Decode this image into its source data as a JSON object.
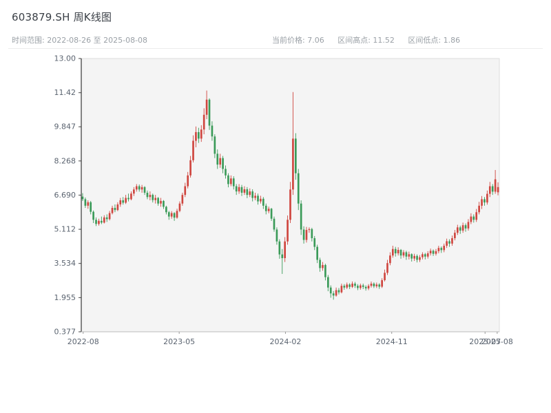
{
  "header": {
    "title": "603879.SH 周K线图",
    "range_label": "时间范围: 2022-08-26 至 2025-08-08",
    "stats": [
      "当前价格: 7.06",
      "区间高点: 11.52",
      "区间低点: 1.86"
    ]
  },
  "chart_data": {
    "type": "candlestick",
    "title": "603879.SH 周K线图",
    "symbol": "603879.SH",
    "interval": "weekly",
    "start": "2022-08-26",
    "end": "2025-08-08",
    "current_price": 7.06,
    "range_high": 11.52,
    "range_low": 1.86,
    "ylim": [
      0.377,
      13.0
    ],
    "grid": false,
    "up_color": "#cf453e",
    "down_color": "#3a9a58",
    "plot_bg": "#f4f4f4",
    "y_ticks": [
      "13.00",
      "11.42",
      "9.847",
      "8.268",
      "6.690",
      "5.112",
      "3.534",
      "1.955",
      "0.377"
    ],
    "x_ticks": [
      {
        "label": "2022-08",
        "week": 0.2
      },
      {
        "label": "2023-05",
        "week": 35.8
      },
      {
        "label": "2024-02",
        "week": 75.2
      },
      {
        "label": "2024-11",
        "week": 114.6
      },
      {
        "label": "2025-07",
        "week": 149.2
      },
      {
        "label": "2025-08",
        "week": 153.7
      }
    ],
    "candles_format": [
      "open",
      "high",
      "low",
      "close"
    ],
    "candles": [
      [
        6.62,
        6.78,
        6.42,
        6.5
      ],
      [
        6.5,
        6.58,
        6.1,
        6.2
      ],
      [
        6.2,
        6.45,
        6.06,
        6.36
      ],
      [
        6.36,
        6.42,
        5.8,
        5.92
      ],
      [
        5.92,
        5.98,
        5.4,
        5.55
      ],
      [
        5.55,
        5.66,
        5.26,
        5.36
      ],
      [
        5.36,
        5.6,
        5.28,
        5.5
      ],
      [
        5.5,
        5.7,
        5.35,
        5.42
      ],
      [
        5.42,
        5.76,
        5.38,
        5.66
      ],
      [
        5.66,
        5.8,
        5.45,
        5.58
      ],
      [
        5.58,
        5.96,
        5.52,
        5.86
      ],
      [
        5.86,
        6.2,
        5.8,
        6.1
      ],
      [
        6.1,
        6.26,
        5.9,
        6.0
      ],
      [
        6.0,
        6.36,
        5.95,
        6.26
      ],
      [
        6.26,
        6.56,
        6.15,
        6.45
      ],
      [
        6.45,
        6.6,
        6.25,
        6.34
      ],
      [
        6.34,
        6.7,
        6.28,
        6.56
      ],
      [
        6.56,
        6.76,
        6.4,
        6.5
      ],
      [
        6.5,
        6.86,
        6.45,
        6.76
      ],
      [
        6.76,
        7.06,
        6.65,
        6.95
      ],
      [
        6.95,
        7.2,
        6.85,
        7.1
      ],
      [
        7.1,
        7.18,
        6.85,
        6.95
      ],
      [
        6.95,
        7.16,
        6.8,
        7.06
      ],
      [
        7.06,
        7.1,
        6.7,
        6.8
      ],
      [
        6.8,
        6.9,
        6.5,
        6.6
      ],
      [
        6.6,
        6.86,
        6.45,
        6.7
      ],
      [
        6.7,
        6.76,
        6.35,
        6.46
      ],
      [
        6.46,
        6.7,
        6.3,
        6.56
      ],
      [
        6.56,
        6.6,
        6.2,
        6.3
      ],
      [
        6.3,
        6.56,
        6.15,
        6.42
      ],
      [
        6.42,
        6.46,
        6.05,
        6.15
      ],
      [
        6.15,
        6.2,
        5.8,
        5.9
      ],
      [
        5.9,
        5.96,
        5.55,
        5.7
      ],
      [
        5.7,
        5.95,
        5.6,
        5.86
      ],
      [
        5.86,
        5.9,
        5.5,
        5.65
      ],
      [
        5.65,
        6.06,
        5.6,
        5.96
      ],
      [
        5.96,
        6.4,
        5.9,
        6.3
      ],
      [
        6.3,
        6.8,
        6.2,
        6.7
      ],
      [
        6.7,
        7.26,
        6.6,
        7.1
      ],
      [
        7.1,
        7.76,
        7.0,
        7.6
      ],
      [
        7.6,
        8.5,
        7.5,
        8.3
      ],
      [
        8.3,
        9.45,
        8.2,
        9.2
      ],
      [
        9.2,
        9.86,
        8.9,
        9.6
      ],
      [
        9.6,
        9.8,
        9.1,
        9.3
      ],
      [
        9.3,
        9.92,
        9.15,
        9.72
      ],
      [
        9.72,
        10.7,
        9.5,
        10.4
      ],
      [
        10.4,
        11.52,
        10.2,
        11.1
      ],
      [
        11.1,
        11.16,
        9.7,
        9.9
      ],
      [
        9.9,
        10.1,
        9.2,
        9.4
      ],
      [
        9.4,
        9.5,
        8.4,
        8.6
      ],
      [
        8.6,
        8.8,
        7.9,
        8.1
      ],
      [
        8.1,
        8.6,
        7.95,
        8.4
      ],
      [
        8.4,
        8.5,
        7.7,
        7.9
      ],
      [
        7.9,
        8.06,
        7.45,
        7.6
      ],
      [
        7.6,
        7.7,
        7.05,
        7.2
      ],
      [
        7.2,
        7.6,
        7.1,
        7.46
      ],
      [
        7.46,
        7.56,
        6.95,
        7.1
      ],
      [
        7.1,
        7.2,
        6.7,
        6.86
      ],
      [
        6.86,
        7.2,
        6.75,
        7.06
      ],
      [
        7.06,
        7.16,
        6.65,
        6.8
      ],
      [
        6.8,
        7.1,
        6.7,
        6.96
      ],
      [
        6.96,
        7.06,
        6.55,
        6.7
      ],
      [
        6.7,
        7.0,
        6.6,
        6.86
      ],
      [
        6.86,
        6.96,
        6.4,
        6.56
      ],
      [
        6.56,
        6.8,
        6.45,
        6.66
      ],
      [
        6.66,
        6.76,
        6.25,
        6.4
      ],
      [
        6.4,
        6.66,
        6.3,
        6.52
      ],
      [
        6.52,
        6.6,
        6.05,
        6.2
      ],
      [
        6.2,
        6.3,
        5.8,
        5.95
      ],
      [
        5.95,
        6.16,
        5.85,
        6.06
      ],
      [
        6.06,
        6.1,
        5.5,
        5.6
      ],
      [
        5.6,
        5.7,
        5.0,
        5.1
      ],
      [
        5.1,
        5.2,
        4.4,
        4.55
      ],
      [
        4.55,
        4.65,
        3.75,
        3.95
      ],
      [
        3.95,
        4.2,
        3.05,
        3.78
      ],
      [
        3.78,
        4.75,
        3.6,
        4.55
      ],
      [
        4.55,
        5.75,
        4.4,
        5.55
      ],
      [
        5.55,
        7.3,
        5.4,
        6.95
      ],
      [
        6.95,
        11.45,
        6.7,
        9.3
      ],
      [
        9.3,
        9.55,
        7.4,
        7.7
      ],
      [
        7.7,
        7.9,
        6.0,
        6.3
      ],
      [
        6.3,
        6.45,
        4.85,
        5.1
      ],
      [
        5.1,
        5.25,
        4.45,
        4.62
      ],
      [
        4.62,
        5.22,
        4.5,
        5.08
      ],
      [
        5.08,
        5.2,
        4.95,
        5.12
      ],
      [
        5.12,
        5.18,
        4.55,
        4.7
      ],
      [
        4.7,
        4.8,
        4.15,
        4.3
      ],
      [
        4.3,
        4.4,
        3.55,
        3.7
      ],
      [
        3.7,
        3.8,
        3.15,
        3.32
      ],
      [
        3.32,
        3.6,
        3.2,
        3.46
      ],
      [
        3.46,
        3.52,
        2.75,
        2.9
      ],
      [
        2.9,
        3.0,
        2.25,
        2.42
      ],
      [
        2.42,
        2.52,
        1.95,
        2.15
      ],
      [
        2.15,
        2.26,
        1.86,
        2.05
      ],
      [
        2.05,
        2.42,
        2.0,
        2.3
      ],
      [
        2.3,
        2.4,
        2.1,
        2.2
      ],
      [
        2.2,
        2.6,
        2.15,
        2.5
      ],
      [
        2.5,
        2.58,
        2.32,
        2.42
      ],
      [
        2.42,
        2.65,
        2.35,
        2.56
      ],
      [
        2.56,
        2.62,
        2.35,
        2.45
      ],
      [
        2.45,
        2.7,
        2.4,
        2.6
      ],
      [
        2.6,
        2.68,
        2.4,
        2.5
      ],
      [
        2.5,
        2.58,
        2.3,
        2.4
      ],
      [
        2.4,
        2.6,
        2.32,
        2.52
      ],
      [
        2.52,
        2.6,
        2.35,
        2.45
      ],
      [
        2.45,
        2.52,
        2.28,
        2.38
      ],
      [
        2.38,
        2.58,
        2.3,
        2.5
      ],
      [
        2.5,
        2.7,
        2.42,
        2.6
      ],
      [
        2.6,
        2.66,
        2.4,
        2.48
      ],
      [
        2.48,
        2.65,
        2.4,
        2.56
      ],
      [
        2.56,
        2.62,
        2.36,
        2.46
      ],
      [
        2.46,
        2.85,
        2.4,
        2.76
      ],
      [
        2.76,
        3.25,
        2.7,
        3.1
      ],
      [
        3.1,
        3.7,
        3.0,
        3.55
      ],
      [
        3.55,
        4.05,
        3.45,
        3.9
      ],
      [
        3.9,
        4.35,
        3.8,
        4.2
      ],
      [
        4.2,
        4.3,
        3.85,
        4.0
      ],
      [
        4.0,
        4.28,
        3.9,
        4.16
      ],
      [
        4.16,
        4.2,
        3.75,
        3.9
      ],
      [
        3.9,
        4.15,
        3.8,
        4.05
      ],
      [
        4.05,
        4.12,
        3.7,
        3.85
      ],
      [
        3.85,
        4.08,
        3.72,
        3.96
      ],
      [
        3.96,
        4.0,
        3.62,
        3.76
      ],
      [
        3.76,
        3.98,
        3.65,
        3.88
      ],
      [
        3.88,
        3.95,
        3.58,
        3.7
      ],
      [
        3.7,
        3.92,
        3.6,
        3.82
      ],
      [
        3.82,
        4.05,
        3.72,
        3.96
      ],
      [
        3.96,
        4.02,
        3.72,
        3.85
      ],
      [
        3.85,
        4.1,
        3.76,
        4.0
      ],
      [
        4.0,
        4.22,
        3.9,
        4.12
      ],
      [
        4.12,
        4.18,
        3.88,
        3.98
      ],
      [
        3.98,
        4.2,
        3.9,
        4.1
      ],
      [
        4.1,
        4.35,
        4.0,
        4.25
      ],
      [
        4.25,
        4.32,
        4.02,
        4.15
      ],
      [
        4.15,
        4.45,
        4.05,
        4.35
      ],
      [
        4.35,
        4.68,
        4.25,
        4.56
      ],
      [
        4.56,
        4.65,
        4.3,
        4.45
      ],
      [
        4.45,
        4.82,
        4.35,
        4.7
      ],
      [
        4.7,
        5.08,
        4.6,
        4.95
      ],
      [
        4.95,
        5.32,
        4.85,
        5.2
      ],
      [
        5.2,
        5.28,
        4.9,
        5.05
      ],
      [
        5.05,
        5.42,
        4.95,
        5.3
      ],
      [
        5.3,
        5.38,
        5.0,
        5.15
      ],
      [
        5.15,
        5.58,
        5.05,
        5.45
      ],
      [
        5.45,
        5.85,
        5.35,
        5.7
      ],
      [
        5.7,
        5.8,
        5.42,
        5.55
      ],
      [
        5.55,
        6.05,
        5.45,
        5.9
      ],
      [
        5.9,
        6.38,
        5.8,
        6.2
      ],
      [
        6.2,
        6.65,
        6.05,
        6.5
      ],
      [
        6.5,
        6.6,
        6.2,
        6.35
      ],
      [
        6.35,
        6.9,
        6.25,
        6.75
      ],
      [
        6.75,
        7.3,
        6.6,
        7.1
      ],
      [
        7.1,
        7.2,
        6.7,
        6.85
      ],
      [
        6.85,
        7.85,
        6.75,
        7.42
      ],
      [
        6.82,
        7.28,
        6.68,
        7.06
      ]
    ]
  }
}
